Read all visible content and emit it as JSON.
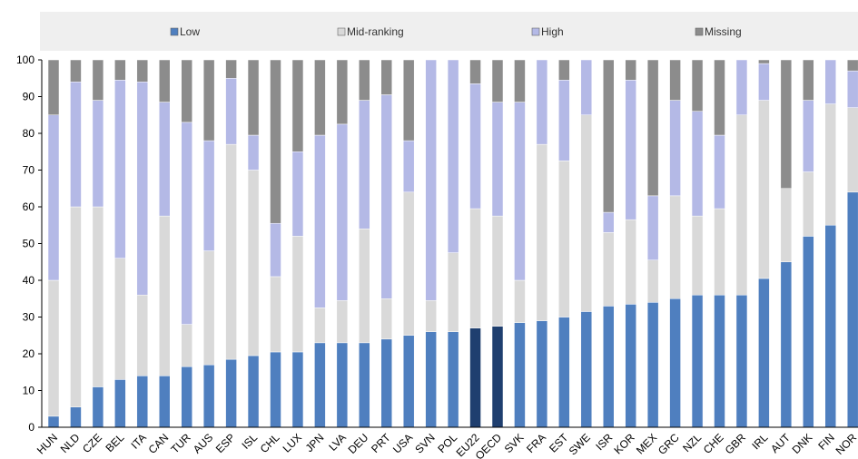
{
  "chart_data": {
    "type": "bar",
    "stacked": true,
    "title": "",
    "xlabel": "",
    "ylabel": "",
    "ylim": [
      0,
      100
    ],
    "yticks": [
      0,
      10,
      20,
      30,
      40,
      50,
      60,
      70,
      80,
      90,
      100
    ],
    "grid": false,
    "legend_position": "top",
    "categories": [
      "HUN",
      "NLD",
      "CZE",
      "BEL",
      "ITA",
      "CAN",
      "TUR",
      "AUS",
      "ESP",
      "ISL",
      "CHL",
      "LUX",
      "JPN",
      "LVA",
      "DEU",
      "PRT",
      "USA",
      "SVN",
      "POL",
      "EU22",
      "OECD",
      "SVK",
      "FRA",
      "EST",
      "SWE",
      "ISR",
      "KOR",
      "MEX",
      "GRC",
      "NZL",
      "CHE",
      "GBR",
      "IRL",
      "AUT",
      "DNK",
      "FIN",
      "NOR"
    ],
    "highlight_categories": [
      "EU22",
      "OECD"
    ],
    "series": [
      {
        "name": "Low",
        "color": "#4f7fbf",
        "highlight_color": "#1f3f6f",
        "values": [
          3,
          5.5,
          11,
          13,
          14,
          14,
          16.5,
          17,
          18.5,
          19.5,
          20.5,
          20.5,
          23,
          23,
          23,
          24,
          25,
          26,
          26,
          27,
          27.5,
          28.5,
          29,
          30,
          31.5,
          33,
          33.5,
          34,
          35,
          36,
          36,
          36,
          40.5,
          45,
          52,
          55,
          64
        ]
      },
      {
        "name": "Mid-ranking",
        "color": "#d9d9d9",
        "values": [
          37,
          54.5,
          49,
          33,
          22,
          43.5,
          11.5,
          31,
          58.5,
          50.5,
          20.5,
          31.5,
          9.5,
          11.5,
          31,
          11,
          39,
          8.5,
          21.5,
          32.5,
          30,
          11.5,
          48,
          42.5,
          53.5,
          20,
          23,
          11.5,
          28,
          21.5,
          23.5,
          49,
          48.5,
          20,
          17.5,
          33,
          23
        ]
      },
      {
        "name": "High",
        "color": "#b4b9e6",
        "values": [
          45,
          34,
          29,
          48.5,
          58,
          31,
          55,
          30,
          18,
          9.5,
          14.5,
          23,
          47,
          48,
          35,
          55.5,
          14,
          65.5,
          52.5,
          34,
          31,
          48.5,
          23,
          22,
          15,
          5.5,
          38,
          17.5,
          26,
          28.5,
          20,
          15,
          10,
          0,
          19.5,
          12,
          10
        ]
      },
      {
        "name": "Missing",
        "color": "#8c8c8c",
        "values": [
          15,
          6,
          11,
          5.5,
          6,
          11.5,
          17,
          22,
          5,
          20.5,
          44.5,
          25,
          20.5,
          17.5,
          11,
          9.5,
          22,
          0,
          0,
          6.5,
          11.5,
          11.5,
          0,
          5.5,
          0,
          41.5,
          5.5,
          37,
          11,
          14,
          20.5,
          0,
          1,
          35,
          11,
          0,
          3
        ]
      }
    ]
  }
}
